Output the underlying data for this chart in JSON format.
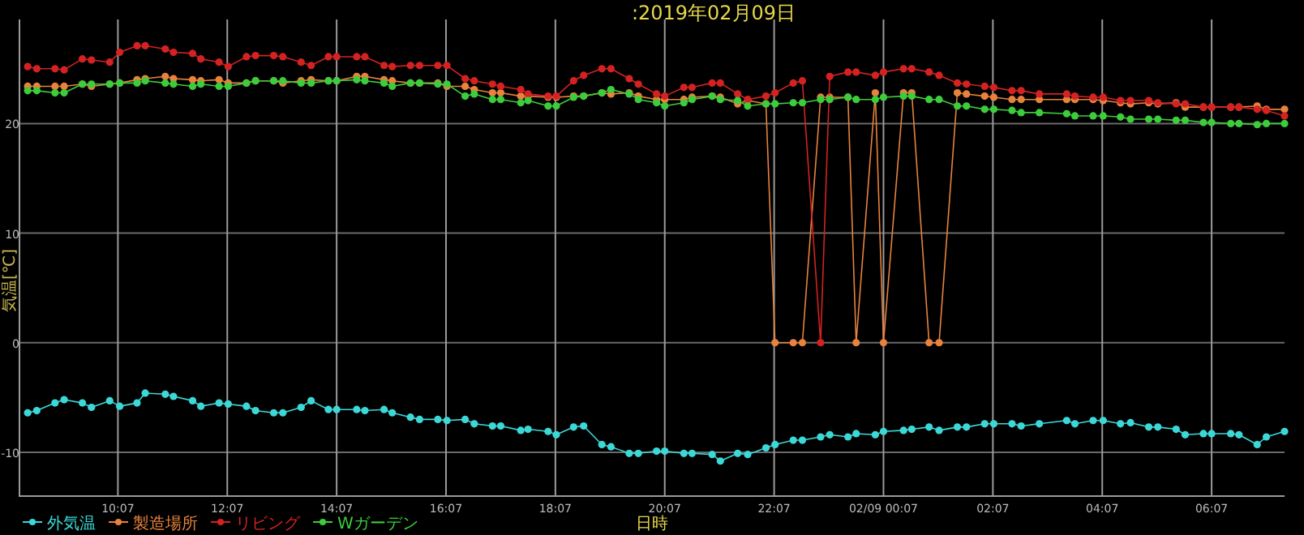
{
  "chart_data": {
    "type": "line",
    "title": ":2019年02月09日",
    "xlabel": "日時",
    "ylabel": "気温[℃]",
    "x": [
      "2019-02-08T08:28",
      "2019-02-08T08:38",
      "2019-02-08T08:58",
      "2019-02-08T09:08",
      "2019-02-08T09:28",
      "2019-02-08T09:38",
      "2019-02-08T09:58",
      "2019-02-08T10:09",
      "2019-02-08T10:28",
      "2019-02-08T10:37",
      "2019-02-08T10:59",
      "2019-02-08T11:08",
      "2019-02-08T11:29",
      "2019-02-08T11:38",
      "2019-02-08T11:58",
      "2019-02-08T12:08",
      "2019-02-08T12:28",
      "2019-02-08T12:38",
      "2019-02-08T12:58",
      "2019-02-08T13:08",
      "2019-02-08T13:28",
      "2019-02-08T13:39",
      "2019-02-08T13:58",
      "2019-02-08T14:07",
      "2019-02-08T14:29",
      "2019-02-08T14:38",
      "2019-02-08T14:59",
      "2019-02-08T15:08",
      "2019-02-08T15:28",
      "2019-02-08T15:38",
      "2019-02-08T15:58",
      "2019-02-08T16:08",
      "2019-02-08T16:28",
      "2019-02-08T16:38",
      "2019-02-08T16:58",
      "2019-02-08T17:07",
      "2019-02-08T17:29",
      "2019-02-08T17:37",
      "2019-02-08T17:59",
      "2019-02-08T18:08",
      "2019-02-08T18:27",
      "2019-02-08T18:38",
      "2019-02-08T18:58",
      "2019-02-08T19:08",
      "2019-02-08T19:28",
      "2019-02-08T19:38",
      "2019-02-08T19:58",
      "2019-02-08T20:07",
      "2019-02-08T20:28",
      "2019-02-08T20:37",
      "2019-02-08T20:59",
      "2019-02-08T21:08",
      "2019-02-08T21:27",
      "2019-02-08T21:38",
      "2019-02-08T21:58",
      "2019-02-08T22:08",
      "2019-02-08T22:28",
      "2019-02-08T22:38",
      "2019-02-08T22:58",
      "2019-02-08T23:08",
      "2019-02-08T23:28",
      "2019-02-08T23:37",
      "2019-02-08T23:58",
      "2019-02-09T00:07",
      "2019-02-09T00:29",
      "2019-02-09T00:38",
      "2019-02-09T00:57",
      "2019-02-09T01:08",
      "2019-02-09T01:28",
      "2019-02-09T01:38",
      "2019-02-09T01:58",
      "2019-02-09T02:08",
      "2019-02-09T02:28",
      "2019-02-09T02:38",
      "2019-02-09T02:58",
      "2019-02-09T03:28",
      "2019-02-09T03:37",
      "2019-02-09T03:57",
      "2019-02-09T04:08",
      "2019-02-09T04:27",
      "2019-02-09T04:38",
      "2019-02-09T04:58",
      "2019-02-09T05:08",
      "2019-02-09T05:28",
      "2019-02-09T05:38",
      "2019-02-09T05:58",
      "2019-02-09T06:07",
      "2019-02-09T06:28",
      "2019-02-09T06:37",
      "2019-02-09T06:57",
      "2019-02-09T07:07",
      "2019-02-09T07:27"
    ],
    "series": [
      {
        "name": "外気温",
        "color": "#3cd8d8",
        "values": [
          -6.4,
          -6.2,
          -5.5,
          -5.2,
          -5.5,
          -5.9,
          -5.3,
          -5.8,
          -5.5,
          -4.6,
          -4.7,
          -4.9,
          -5.3,
          -5.8,
          -5.5,
          -5.6,
          -5.8,
          -6.2,
          -6.4,
          -6.4,
          -5.9,
          -5.3,
          -6.1,
          -6.1,
          -6.1,
          -6.2,
          -6.1,
          -6.4,
          -6.8,
          -7.0,
          -7.0,
          -7.1,
          -7.0,
          -7.4,
          -7.6,
          -7.6,
          -8.0,
          -7.9,
          -8.1,
          -8.4,
          -7.7,
          -7.6,
          -9.3,
          -9.5,
          -10.1,
          -10.1,
          -9.9,
          -9.9,
          -10.1,
          -10.1,
          -10.2,
          -10.8,
          -10.1,
          -10.2,
          -9.6,
          -9.3,
          -8.9,
          -8.9,
          -8.6,
          -8.4,
          -8.6,
          -8.3,
          -8.4,
          -8.1,
          -8.0,
          -7.9,
          -7.7,
          -8.0,
          -7.7,
          -7.7,
          -7.4,
          -7.4,
          -7.4,
          -7.6,
          -7.4,
          -7.1,
          -7.4,
          -7.1,
          -7.1,
          -7.4,
          -7.3,
          -7.7,
          -7.7,
          -7.9,
          -8.4,
          -8.3,
          -8.3,
          -8.3,
          -8.4,
          -9.3,
          -8.6,
          -8.1
        ]
      },
      {
        "name": "製造場所",
        "color": "#e8823c",
        "values": [
          23.4,
          23.4,
          23.4,
          23.4,
          23.6,
          23.4,
          23.6,
          23.7,
          24.0,
          24.1,
          24.3,
          24.1,
          24.0,
          23.9,
          24.0,
          23.7,
          23.7,
          23.9,
          23.9,
          23.7,
          23.9,
          24.0,
          23.9,
          23.9,
          24.3,
          24.3,
          24.0,
          23.9,
          23.7,
          23.7,
          23.7,
          23.4,
          23.4,
          23.1,
          22.8,
          22.8,
          22.5,
          22.5,
          22.4,
          22.4,
          22.5,
          22.5,
          22.8,
          22.7,
          22.8,
          22.5,
          22.2,
          22.2,
          22.2,
          22.4,
          22.5,
          22.4,
          21.8,
          22.1,
          21.8,
          0,
          0,
          0,
          22.4,
          22.4,
          22.4,
          0,
          22.8,
          0,
          22.8,
          22.8,
          0,
          0,
          22.8,
          22.7,
          22.5,
          22.4,
          22.2,
          22.2,
          22.2,
          22.2,
          22.2,
          22.2,
          22.1,
          21.9,
          21.8,
          21.9,
          21.8,
          21.9,
          21.5,
          21.5,
          21.5,
          21.5,
          21.5,
          21.6,
          21.3,
          21.3
        ]
      },
      {
        "name": "リビング",
        "color": "#d42222",
        "values": [
          25.2,
          25.0,
          25.0,
          24.9,
          25.9,
          25.8,
          25.6,
          26.5,
          27.1,
          27.1,
          26.8,
          26.5,
          26.4,
          25.9,
          25.6,
          25.2,
          26.1,
          26.2,
          26.2,
          26.1,
          25.6,
          25.3,
          26.1,
          26.1,
          26.1,
          26.1,
          25.3,
          25.2,
          25.3,
          25.3,
          25.3,
          25.3,
          24.1,
          23.9,
          23.6,
          23.4,
          23.1,
          22.7,
          22.5,
          22.5,
          23.9,
          24.4,
          25.0,
          25.0,
          24.1,
          23.6,
          22.7,
          22.5,
          23.3,
          23.3,
          23.7,
          23.7,
          22.7,
          22.2,
          22.5,
          22.8,
          23.7,
          23.9,
          0,
          24.3,
          24.7,
          24.7,
          24.4,
          24.7,
          25.0,
          25.0,
          24.7,
          24.4,
          23.7,
          23.6,
          23.4,
          23.3,
          23.0,
          23.0,
          22.7,
          22.7,
          22.5,
          22.4,
          22.4,
          22.1,
          22.1,
          22.1,
          21.9,
          21.8,
          21.8,
          21.5,
          21.5,
          21.5,
          21.5,
          21.3,
          21.2,
          20.7
        ]
      },
      {
        "name": "Wガーデン",
        "color": "#3ccc3c",
        "values": [
          23.0,
          23.0,
          22.8,
          22.8,
          23.6,
          23.6,
          23.6,
          23.7,
          23.7,
          23.9,
          23.7,
          23.6,
          23.4,
          23.6,
          23.4,
          23.4,
          23.7,
          23.9,
          23.9,
          23.9,
          23.7,
          23.7,
          23.9,
          23.9,
          24.0,
          23.9,
          23.7,
          23.4,
          23.7,
          23.7,
          23.6,
          23.6,
          22.5,
          22.7,
          22.2,
          22.2,
          21.9,
          22.1,
          21.6,
          21.6,
          22.4,
          22.5,
          22.8,
          23.1,
          22.7,
          22.2,
          21.9,
          21.6,
          21.9,
          22.2,
          22.5,
          22.2,
          22.1,
          21.6,
          21.8,
          21.8,
          21.9,
          21.9,
          22.2,
          22.2,
          22.4,
          22.2,
          22.2,
          22.4,
          22.5,
          22.5,
          22.2,
          22.2,
          21.6,
          21.6,
          21.3,
          21.3,
          21.2,
          21.0,
          21.0,
          20.9,
          20.7,
          20.7,
          20.7,
          20.6,
          20.4,
          20.4,
          20.4,
          20.3,
          20.3,
          20.1,
          20.1,
          20.0,
          20.0,
          19.9,
          20.0,
          20.0
        ]
      }
    ],
    "xlim": [
      "2019-02-08T08:19",
      "2019-02-09T07:27"
    ],
    "xticks": [
      {
        "value": "2019-02-08T10:07",
        "label": "10:07"
      },
      {
        "value": "2019-02-08T12:07",
        "label": "12:07"
      },
      {
        "value": "2019-02-08T14:07",
        "label": "14:07"
      },
      {
        "value": "2019-02-08T16:07",
        "label": "16:07"
      },
      {
        "value": "2019-02-08T18:07",
        "label": "18:07"
      },
      {
        "value": "2019-02-08T20:07",
        "label": "20:07"
      },
      {
        "value": "2019-02-08T22:07",
        "label": "22:07"
      },
      {
        "value": "2019-02-09T00:07",
        "label": "02/09 00:07"
      },
      {
        "value": "2019-02-09T02:07",
        "label": "02:07"
      },
      {
        "value": "2019-02-09T04:07",
        "label": "04:07"
      },
      {
        "value": "2019-02-09T06:07",
        "label": "06:07"
      }
    ],
    "ylim": [
      -14,
      29.5
    ],
    "yticks": [
      -10,
      0,
      10,
      20
    ],
    "grid": true,
    "legend": "bottom left",
    "marker": "circle",
    "line_style": "solid"
  }
}
